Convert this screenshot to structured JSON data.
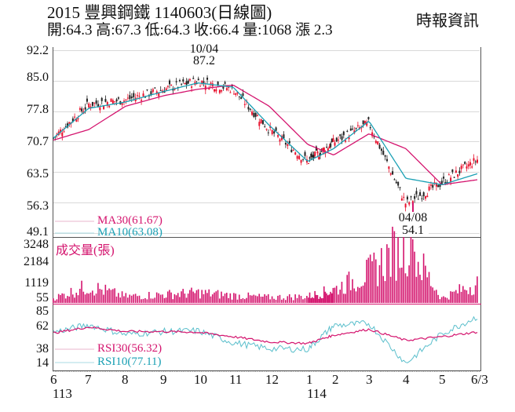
{
  "header": {
    "title": "2015  豐興鋼鐵 1140603(日線圖)",
    "ohlc": "開:64.3 高:67.3 低:64.3 收:66.4 量:1068 漲 2.3",
    "brand": "時報資訊"
  },
  "chart_data": [
    {
      "type": "candlestick",
      "title": "2015 豐興鋼鐵 1140603(日線圖)",
      "summary": {
        "open": 64.3,
        "high": 67.3,
        "low": 64.3,
        "close": 66.4,
        "volume": 1068,
        "change": 2.3
      },
      "y_ticks": [
        "92.2",
        "85.0",
        "77.8",
        "70.7",
        "63.5",
        "56.3",
        "49.1"
      ],
      "ylim": [
        49.1,
        92.2
      ],
      "x_ticks": [
        "6",
        "7",
        "8",
        "9",
        "10",
        "11",
        "12",
        "1",
        "2",
        "3",
        "4",
        "5",
        "6/3"
      ],
      "x_year_labels": [
        {
          "at": "6",
          "label": "113"
        },
        {
          "at": "1",
          "label": "114"
        }
      ],
      "annotations": [
        {
          "date": "10/04",
          "value": "87.2",
          "type": "high"
        },
        {
          "date": "04/08",
          "value": "54.1",
          "type": "low"
        }
      ],
      "legend": [
        {
          "name": "MA30(61.67)",
          "color": "#d4146e"
        },
        {
          "name": "MA10(63.08)",
          "color": "#1aa0b4"
        }
      ],
      "series": [
        {
          "name": "close_approx",
          "x": [
            "6",
            "7",
            "8",
            "9",
            "10",
            "11",
            "12",
            "1",
            "2",
            "3",
            "4",
            "5",
            "6/3"
          ],
          "values": [
            71.5,
            79.5,
            80.5,
            83.0,
            85.0,
            83.0,
            73.5,
            66.0,
            70.5,
            75.0,
            56.0,
            61.0,
            66.4
          ]
        },
        {
          "name": "MA30",
          "x": [
            "6",
            "7",
            "8",
            "9",
            "10",
            "11",
            "12",
            "1",
            "2",
            "3",
            "4",
            "5",
            "6/3"
          ],
          "values": [
            71.0,
            73.5,
            79.0,
            81.5,
            83.0,
            84.0,
            79.0,
            70.0,
            67.5,
            72.5,
            69.0,
            60.5,
            61.67
          ]
        },
        {
          "name": "MA10",
          "x": [
            "6",
            "7",
            "8",
            "9",
            "10",
            "11",
            "12",
            "1",
            "2",
            "3",
            "4",
            "5",
            "6/3"
          ],
          "values": [
            71.5,
            78.5,
            80.0,
            82.5,
            84.5,
            83.5,
            74.5,
            66.0,
            69.0,
            75.5,
            62.0,
            60.5,
            63.08
          ]
        }
      ]
    },
    {
      "type": "bar",
      "title": "成交量(張)",
      "y_ticks": [
        "3248",
        "2184",
        "1119",
        "55"
      ],
      "ylim": [
        55,
        3248
      ],
      "x": [
        "6",
        "7",
        "8",
        "9",
        "10",
        "11",
        "12",
        "1",
        "2",
        "3",
        "4",
        "5",
        "6/3"
      ],
      "values": [
        250,
        900,
        350,
        450,
        550,
        400,
        300,
        350,
        700,
        1600,
        3248,
        250,
        1068
      ],
      "color": "#d4146e"
    },
    {
      "type": "line",
      "title": "RSI",
      "y_ticks": [
        "85",
        "62",
        "38",
        "14"
      ],
      "ylim": [
        14,
        85
      ],
      "legend": [
        {
          "name": "RSI30(56.32)",
          "color": "#d4146e"
        },
        {
          "name": "RSI10(77.11)",
          "color": "#1aa0b4"
        }
      ],
      "x": [
        "6",
        "7",
        "8",
        "9",
        "10",
        "11",
        "12",
        "1",
        "2",
        "3",
        "4",
        "5",
        "6/3"
      ],
      "series": [
        {
          "name": "RSI30",
          "values": [
            55,
            63,
            57,
            57,
            56,
            50,
            43,
            41,
            52,
            60,
            45,
            50,
            56.32
          ]
        },
        {
          "name": "RSI10",
          "values": [
            56,
            66,
            53,
            57,
            58,
            42,
            34,
            33,
            65,
            68,
            14,
            54,
            77.11
          ]
        }
      ]
    }
  ],
  "price_panel": {
    "y_labels": [
      "92.2",
      "85.0",
      "77.8",
      "70.7",
      "63.5",
      "56.3",
      "49.1"
    ],
    "high_date": "10/04",
    "high_value": "87.2",
    "low_date": "04/08",
    "low_value": "54.1",
    "ma30_label": "MA30(61.67)",
    "ma10_label": "MA10(63.08)"
  },
  "volume_panel": {
    "title": "成交量(張)",
    "y_labels": [
      "3248",
      "2184",
      "1119",
      "55"
    ]
  },
  "rsi_panel": {
    "y_labels": [
      "85",
      "62",
      "38",
      "14"
    ],
    "rsi30_label": "RSI30(56.32)",
    "rsi10_label": "RSI10(77.11)"
  },
  "x_axis": {
    "labels": [
      "6",
      "7",
      "8",
      "9",
      "10",
      "11",
      "12",
      "1",
      "2",
      "3",
      "4",
      "5",
      "6/3"
    ],
    "year_113": "113",
    "year_114": "114"
  },
  "colors": {
    "up": "#e8112d",
    "down": "#222222",
    "ma30": "#d4146e",
    "ma10": "#1aa0b4",
    "volume": "#d4146e",
    "grid": "#d9d9d9"
  }
}
